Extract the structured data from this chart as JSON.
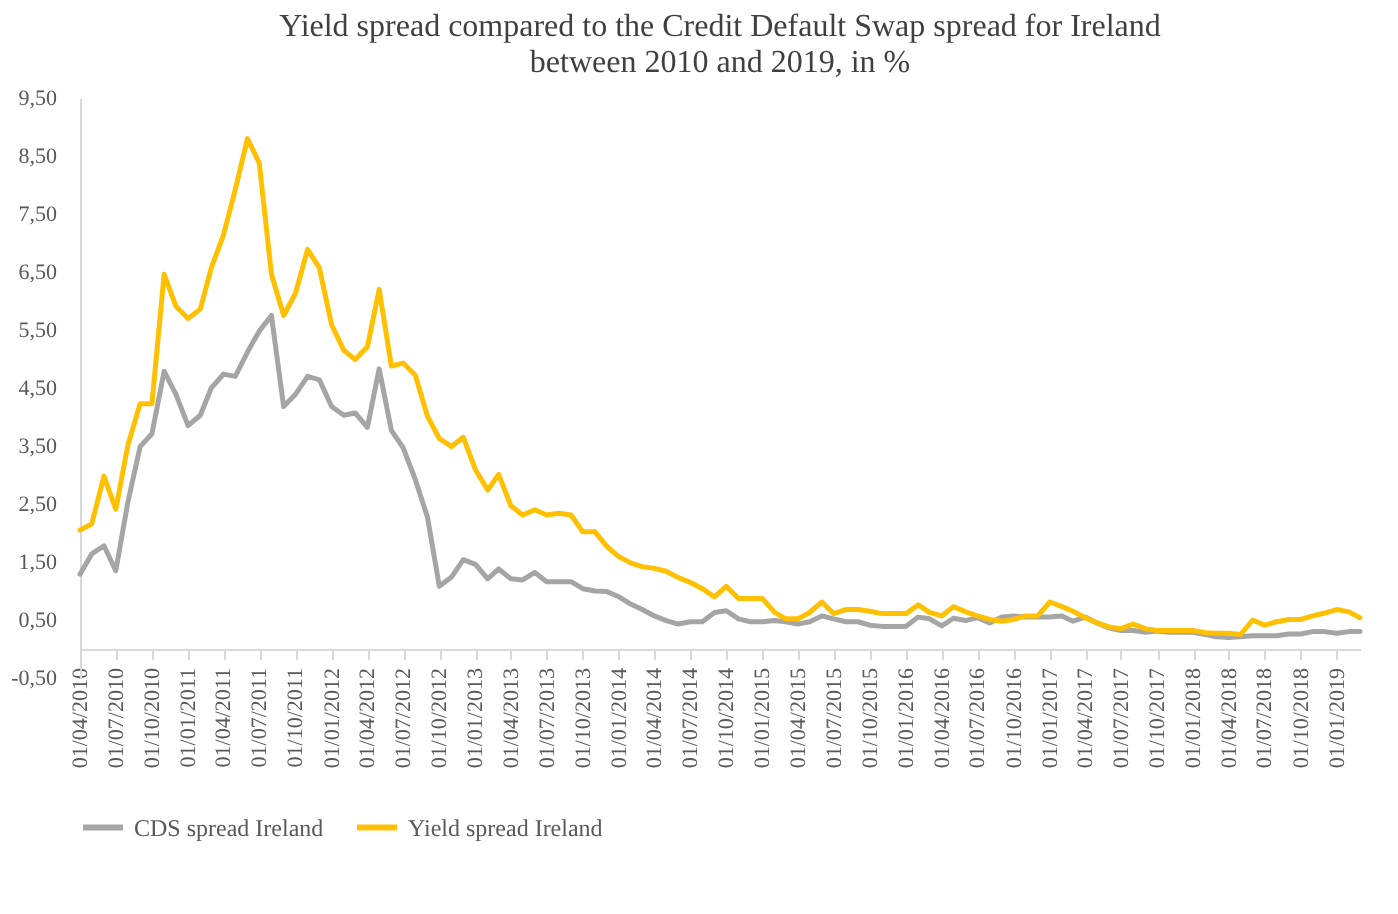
{
  "chart_data": {
    "type": "line",
    "title": "Yield spread compared to the Credit Default Swap spread for Ireland\nbetween 2010 and 2019, in %",
    "x": [
      "2010-04",
      "2010-05",
      "2010-06",
      "2010-07",
      "2010-08",
      "2010-09",
      "2010-10",
      "2010-11",
      "2010-12",
      "2011-01",
      "2011-02",
      "2011-03",
      "2011-04",
      "2011-05",
      "2011-06",
      "2011-07",
      "2011-08",
      "2011-09",
      "2011-10",
      "2011-11",
      "2011-12",
      "2012-01",
      "2012-02",
      "2012-03",
      "2012-04",
      "2012-05",
      "2012-06",
      "2012-07",
      "2012-08",
      "2012-09",
      "2012-10",
      "2012-11",
      "2012-12",
      "2013-01",
      "2013-02",
      "2013-03",
      "2013-04",
      "2013-05",
      "2013-06",
      "2013-07",
      "2013-08",
      "2013-09",
      "2013-10",
      "2013-11",
      "2013-12",
      "2014-01",
      "2014-02",
      "2014-03",
      "2014-04",
      "2014-05",
      "2014-06",
      "2014-07",
      "2014-08",
      "2014-09",
      "2014-10",
      "2014-11",
      "2014-12",
      "2015-01",
      "2015-02",
      "2015-03",
      "2015-04",
      "2015-05",
      "2015-06",
      "2015-07",
      "2015-08",
      "2015-09",
      "2015-10",
      "2015-11",
      "2015-12",
      "2016-01",
      "2016-02",
      "2016-03",
      "2016-04",
      "2016-05",
      "2016-06",
      "2016-07",
      "2016-08",
      "2016-09",
      "2016-10",
      "2016-11",
      "2016-12",
      "2017-01",
      "2017-02",
      "2017-03",
      "2017-04",
      "2017-05",
      "2017-06",
      "2017-07",
      "2017-08",
      "2017-09",
      "2017-10",
      "2017-11",
      "2017-12",
      "2018-01",
      "2018-02",
      "2018-03",
      "2018-04",
      "2018-05",
      "2018-06",
      "2018-07",
      "2018-08",
      "2018-09",
      "2018-10",
      "2018-11",
      "2018-12",
      "2019-01",
      "2019-02",
      "2019-03"
    ],
    "series": [
      {
        "name": "CDS spread Ireland",
        "color": "#a5a5a5",
        "values": [
          1.29,
          1.64,
          1.78,
          1.35,
          2.54,
          3.49,
          3.71,
          4.79,
          4.39,
          3.85,
          4.03,
          4.5,
          4.74,
          4.7,
          5.12,
          5.48,
          5.75,
          4.18,
          4.39,
          4.7,
          4.64,
          4.18,
          4.03,
          4.07,
          3.82,
          4.83,
          3.77,
          3.47,
          2.92,
          2.27,
          1.08,
          1.24,
          1.54,
          1.46,
          1.21,
          1.38,
          1.21,
          1.19,
          1.32,
          1.16,
          1.16,
          1.16,
          1.04,
          1.0,
          0.99,
          0.9,
          0.77,
          0.68,
          0.57,
          0.49,
          0.43,
          0.47,
          0.47,
          0.63,
          0.66,
          0.52,
          0.47,
          0.47,
          0.49,
          0.47,
          0.43,
          0.47,
          0.57,
          0.52,
          0.47,
          0.47,
          0.41,
          0.39,
          0.39,
          0.39,
          0.55,
          0.52,
          0.4,
          0.53,
          0.49,
          0.54,
          0.45,
          0.55,
          0.57,
          0.55,
          0.55,
          0.55,
          0.57,
          0.48,
          0.55,
          0.45,
          0.36,
          0.32,
          0.32,
          0.29,
          0.31,
          0.29,
          0.29,
          0.29,
          0.25,
          0.21,
          0.2,
          0.21,
          0.23,
          0.23,
          0.23,
          0.26,
          0.26,
          0.3,
          0.3,
          0.27,
          0.3,
          0.3
        ]
      },
      {
        "name": "Yield spread Ireland",
        "color": "#ffc000",
        "values": [
          2.05,
          2.16,
          2.98,
          2.41,
          3.52,
          4.23,
          4.23,
          6.46,
          5.91,
          5.7,
          5.86,
          6.57,
          7.14,
          7.92,
          8.8,
          8.38,
          6.46,
          5.75,
          6.13,
          6.89,
          6.57,
          5.59,
          5.15,
          4.99,
          5.21,
          6.2,
          4.88,
          4.93,
          4.72,
          4.01,
          3.63,
          3.49,
          3.65,
          3.09,
          2.74,
          3.01,
          2.47,
          2.31,
          2.4,
          2.31,
          2.34,
          2.31,
          2.02,
          2.02,
          1.77,
          1.59,
          1.48,
          1.42,
          1.39,
          1.34,
          1.23,
          1.15,
          1.04,
          0.9,
          1.08,
          0.87,
          0.87,
          0.87,
          0.63,
          0.52,
          0.52,
          0.63,
          0.81,
          0.61,
          0.68,
          0.68,
          0.65,
          0.61,
          0.61,
          0.61,
          0.76,
          0.63,
          0.57,
          0.73,
          0.64,
          0.57,
          0.51,
          0.48,
          0.51,
          0.57,
          0.57,
          0.81,
          0.73,
          0.65,
          0.54,
          0.45,
          0.38,
          0.35,
          0.43,
          0.35,
          0.32,
          0.32,
          0.32,
          0.32,
          0.28,
          0.27,
          0.27,
          0.25,
          0.5,
          0.41,
          0.47,
          0.51,
          0.51,
          0.57,
          0.62,
          0.68,
          0.64,
          0.54
        ]
      }
    ],
    "xlim": [
      "2010-04-01",
      "2019-03-01"
    ],
    "xticks": [
      {
        "value": "2010-04-01",
        "label": "01/04/2010"
      },
      {
        "value": "2010-07-01",
        "label": "01/07/2010"
      },
      {
        "value": "2010-10-01",
        "label": "01/10/2010"
      },
      {
        "value": "2011-01-01",
        "label": "01/01/2011"
      },
      {
        "value": "2011-04-01",
        "label": "01/04/2011"
      },
      {
        "value": "2011-07-01",
        "label": "01/07/2011"
      },
      {
        "value": "2011-10-01",
        "label": "01/10/2011"
      },
      {
        "value": "2012-01-01",
        "label": "01/01/2012"
      },
      {
        "value": "2012-04-01",
        "label": "01/04/2012"
      },
      {
        "value": "2012-07-01",
        "label": "01/07/2012"
      },
      {
        "value": "2012-10-01",
        "label": "01/10/2012"
      },
      {
        "value": "2013-01-01",
        "label": "01/01/2013"
      },
      {
        "value": "2013-04-01",
        "label": "01/04/2013"
      },
      {
        "value": "2013-07-01",
        "label": "01/07/2013"
      },
      {
        "value": "2013-10-01",
        "label": "01/10/2013"
      },
      {
        "value": "2014-01-01",
        "label": "01/01/2014"
      },
      {
        "value": "2014-04-01",
        "label": "01/04/2014"
      },
      {
        "value": "2014-07-01",
        "label": "01/07/2014"
      },
      {
        "value": "2014-10-01",
        "label": "01/10/2014"
      },
      {
        "value": "2015-01-01",
        "label": "01/01/2015"
      },
      {
        "value": "2015-04-01",
        "label": "01/04/2015"
      },
      {
        "value": "2015-07-01",
        "label": "01/07/2015"
      },
      {
        "value": "2015-10-01",
        "label": "01/10/2015"
      },
      {
        "value": "2016-01-01",
        "label": "01/01/2016"
      },
      {
        "value": "2016-04-01",
        "label": "01/04/2016"
      },
      {
        "value": "2016-07-01",
        "label": "01/07/2016"
      },
      {
        "value": "2016-10-01",
        "label": "01/10/2016"
      },
      {
        "value": "2017-01-01",
        "label": "01/01/2017"
      },
      {
        "value": "2017-04-01",
        "label": "01/04/2017"
      },
      {
        "value": "2017-07-01",
        "label": "01/07/2017"
      },
      {
        "value": "2017-10-01",
        "label": "01/10/2017"
      },
      {
        "value": "2018-01-01",
        "label": "01/01/2018"
      },
      {
        "value": "2018-04-01",
        "label": "01/04/2018"
      },
      {
        "value": "2018-07-01",
        "label": "01/07/2018"
      },
      {
        "value": "2018-10-01",
        "label": "01/10/2018"
      },
      {
        "value": "2019-01-01",
        "label": "01/01/2019"
      }
    ],
    "ylim": [
      -0.5,
      9.5
    ],
    "yticks": [
      {
        "value": -0.5,
        "label": "-0,50"
      },
      {
        "value": 0.5,
        "label": "0,50"
      },
      {
        "value": 1.5,
        "label": "1,50"
      },
      {
        "value": 2.5,
        "label": "2,50"
      },
      {
        "value": 3.5,
        "label": "3,50"
      },
      {
        "value": 4.5,
        "label": "4,50"
      },
      {
        "value": 5.5,
        "label": "5,50"
      },
      {
        "value": 6.5,
        "label": "6,50"
      },
      {
        "value": 7.5,
        "label": "7,50"
      },
      {
        "value": 8.5,
        "label": "8,50"
      },
      {
        "value": 9.5,
        "label": "9,50"
      }
    ],
    "grid": false,
    "legend": "bottom",
    "marker": "none",
    "line_style": "solid"
  }
}
